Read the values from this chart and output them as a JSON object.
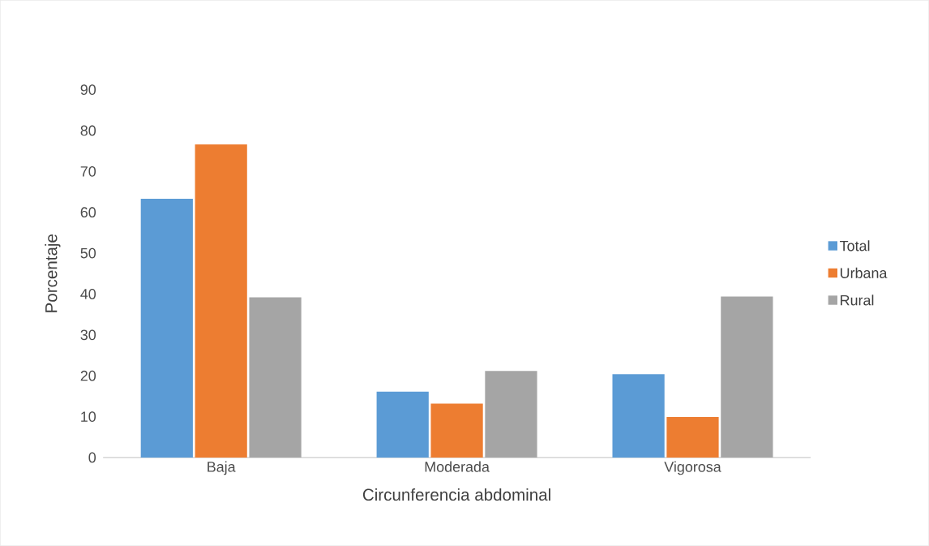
{
  "chart_data": {
    "type": "bar",
    "xlabel": "Circunferencia abdominal",
    "ylabel": "Porcentaje",
    "categories": [
      "Baja",
      "Moderada",
      "Vigorosa"
    ],
    "series": [
      {
        "name": "Total",
        "color": "#5b9bd5",
        "values": [
          63.3,
          16.1,
          20.4
        ]
      },
      {
        "name": "Urbana",
        "color": "#ed7d31",
        "values": [
          76.6,
          13.2,
          9.9
        ]
      },
      {
        "name": "Rural",
        "color": "#a5a5a5",
        "values": [
          39.2,
          21.2,
          39.4
        ]
      }
    ],
    "ylim": [
      0,
      90
    ],
    "yticks": [
      0,
      10,
      20,
      30,
      40,
      50,
      60,
      70,
      80,
      90
    ],
    "legend": "right"
  }
}
